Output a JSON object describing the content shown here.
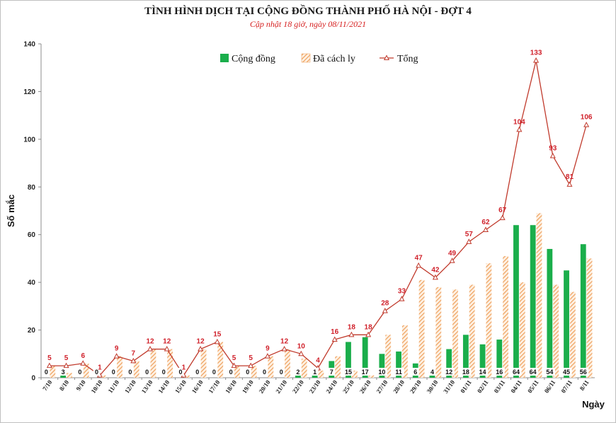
{
  "chart_data": {
    "type": "bar",
    "title": "TÌNH HÌNH DỊCH TẠI CỘNG ĐỒNG THÀNH PHỐ HÀ NỘI - ĐỢT 4",
    "subtitle": "Cập nhật 18 giờ, ngày 08/11/2021",
    "ylabel": "Số mắc",
    "xlabel": "Ngày",
    "ylim": [
      0,
      140
    ],
    "yticks": [
      0,
      20,
      40,
      60,
      80,
      100,
      120,
      140
    ],
    "grid": false,
    "legend_position": "top-center",
    "categories": [
      "7/10",
      "8/10",
      "9/10",
      "10/10",
      "11/10",
      "12/10",
      "13/10",
      "14/10",
      "15/10",
      "16/10",
      "17/10",
      "18/10",
      "19/10",
      "20/10",
      "21/10",
      "22/10",
      "23/10",
      "24/10",
      "25/10",
      "26/10",
      "27/10",
      "28/10",
      "29/10",
      "30/10",
      "31/10",
      "01/11",
      "02/11",
      "03/11",
      "04/11",
      "05/11",
      "06/11",
      "07/11",
      "8/11"
    ],
    "series": [
      {
        "name": "Cộng đồng",
        "kind": "bar",
        "color": "#1aae4b",
        "values": [
          0,
          3,
          0,
          0,
          0,
          0,
          0,
          0,
          0,
          0,
          0,
          0,
          0,
          0,
          0,
          2,
          1,
          7,
          15,
          17,
          10,
          11,
          6,
          4,
          12,
          18,
          14,
          16,
          64,
          64,
          54,
          45,
          56
        ]
      },
      {
        "name": "Đã cách ly",
        "kind": "bar-hatched",
        "color": "#f0a868",
        "values": [
          5,
          2,
          6,
          1,
          9,
          7,
          12,
          12,
          1,
          12,
          15,
          5,
          5,
          9,
          12,
          8,
          3,
          9,
          3,
          1,
          18,
          22,
          41,
          38,
          37,
          39,
          48,
          51,
          40,
          69,
          39,
          36,
          50
        ]
      },
      {
        "name": "Tổng",
        "kind": "line",
        "color": "#c0392b",
        "values": [
          5,
          5,
          6,
          1,
          9,
          7,
          12,
          12,
          1,
          12,
          15,
          5,
          5,
          9,
          12,
          10,
          4,
          16,
          18,
          18,
          28,
          33,
          47,
          42,
          49,
          57,
          62,
          67,
          104,
          133,
          93,
          81,
          106
        ]
      }
    ]
  }
}
